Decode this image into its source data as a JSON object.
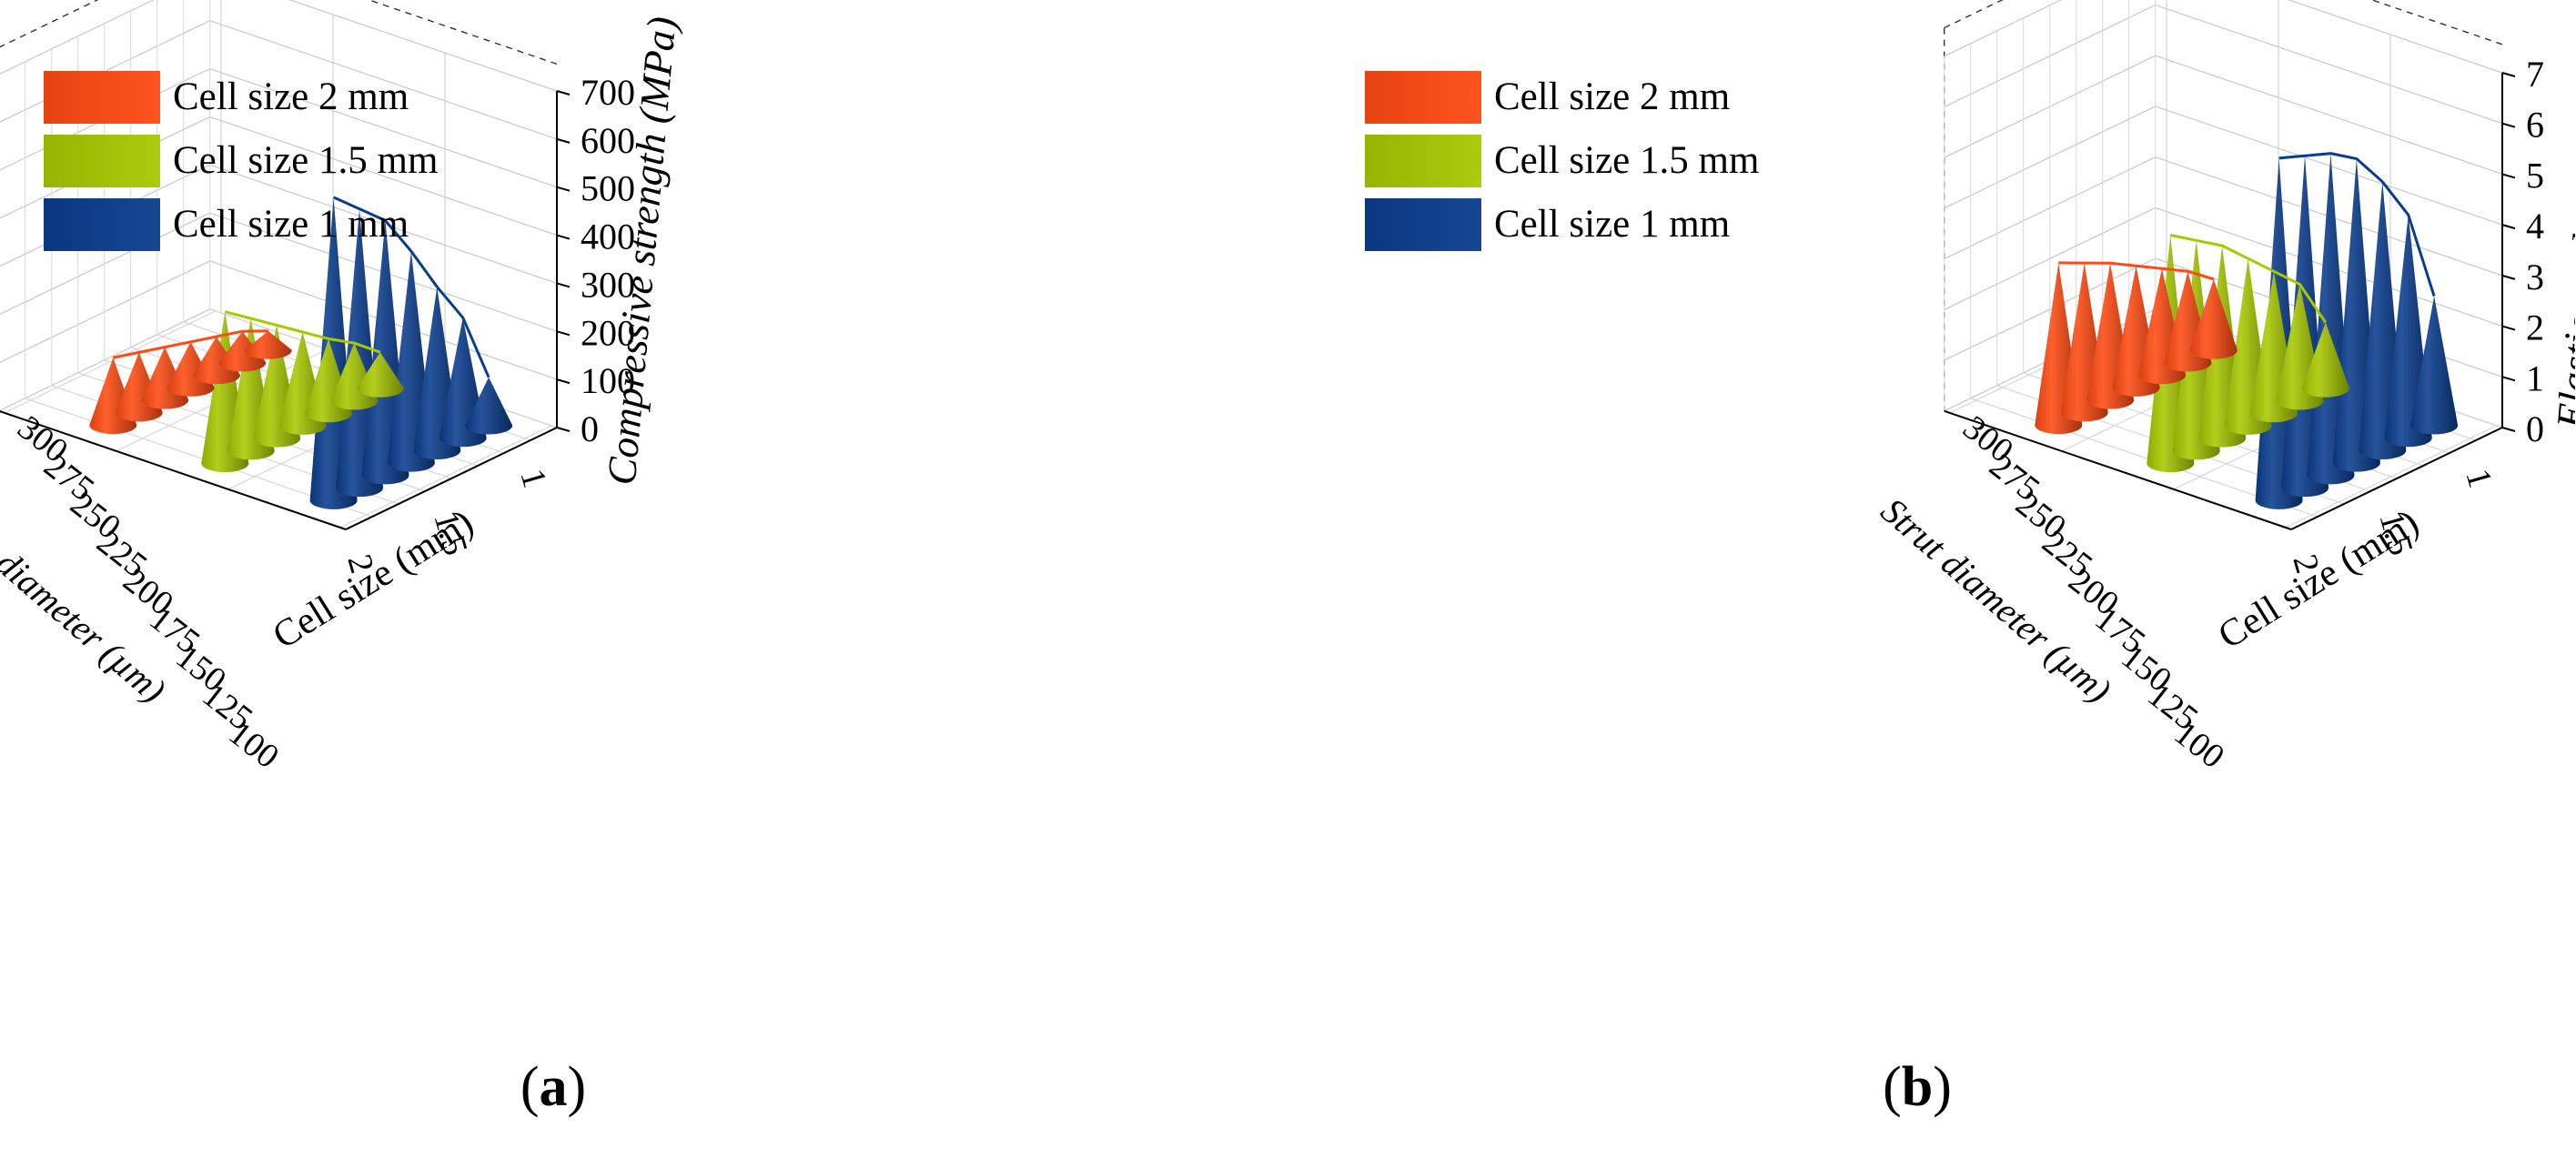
{
  "chart_data": [
    {
      "type": "3d-cone-bar",
      "panel_label": "a",
      "zlabel": "Compressive strength (MPa)",
      "zlim": [
        0,
        700
      ],
      "zticks": [
        "0",
        "100",
        "200",
        "300",
        "400",
        "500",
        "600",
        "700"
      ],
      "xlabel": "Strut diameter (µm)",
      "xticks": [
        "300",
        "275",
        "250",
        "225",
        "200",
        "175",
        "150",
        "125",
        "100"
      ],
      "ylabel": "Cell size (mm)",
      "yticks": [
        "1",
        "1.5",
        "2"
      ],
      "series": [
        {
          "name": "Cell size 2 mm",
          "color": "#ff4a12",
          "strut_diameters": [
            300,
            275,
            250,
            225,
            200,
            175,
            150
          ],
          "values": [
            140,
            125,
            110,
            95,
            80,
            65,
            40
          ]
        },
        {
          "name": "Cell size 1.5 mm",
          "color": "#a8c800",
          "strut_diameters": [
            300,
            275,
            250,
            225,
            200,
            175,
            150
          ],
          "values": [
            315,
            275,
            235,
            195,
            155,
            120,
            75
          ]
        },
        {
          "name": "Cell size 1 mm",
          "color": "#0b3d8e",
          "strut_diameters": [
            300,
            275,
            250,
            225,
            200,
            175,
            150
          ],
          "values": [
            630,
            580,
            530,
            440,
            340,
            250,
            100
          ]
        }
      ]
    },
    {
      "type": "3d-cone-bar",
      "panel_label": "b",
      "zlabel": "Elastic modulus (GPa)",
      "zlim": [
        0,
        7
      ],
      "zticks": [
        "0",
        "1",
        "2",
        "3",
        "4",
        "5",
        "6",
        "7"
      ],
      "xlabel": "Strut diameter (µm)",
      "xticks": [
        "300",
        "275",
        "250",
        "225",
        "200",
        "175",
        "150",
        "125",
        "100"
      ],
      "ylabel": "Cell size (mm)",
      "yticks": [
        "1",
        "1.5",
        "2"
      ],
      "series": [
        {
          "name": "Cell size 2 mm",
          "color": "#ff4a12",
          "strut_diameters": [
            300,
            275,
            250,
            225,
            200,
            175,
            150
          ],
          "values": [
            3.2,
            2.95,
            2.7,
            2.4,
            2.1,
            1.8,
            1.4
          ]
        },
        {
          "name": "Cell size 1.5 mm",
          "color": "#a8c800",
          "strut_diameters": [
            300,
            275,
            250,
            225,
            200,
            175,
            150
          ],
          "values": [
            4.5,
            4.15,
            3.8,
            3.3,
            2.8,
            2.3,
            1.3
          ]
        },
        {
          "name": "Cell size 1 mm",
          "color": "#0b3d8e",
          "strut_diameters": [
            300,
            275,
            250,
            225,
            200,
            175,
            150
          ],
          "values": [
            6.75,
            6.55,
            6.35,
            6.0,
            5.3,
            4.4,
            2.55
          ]
        }
      ]
    }
  ],
  "panels": [
    {
      "label_open": "(",
      "label_letter": "a",
      "label_close": ")"
    },
    {
      "label_open": "(",
      "label_letter": "b",
      "label_close": ")"
    }
  ]
}
